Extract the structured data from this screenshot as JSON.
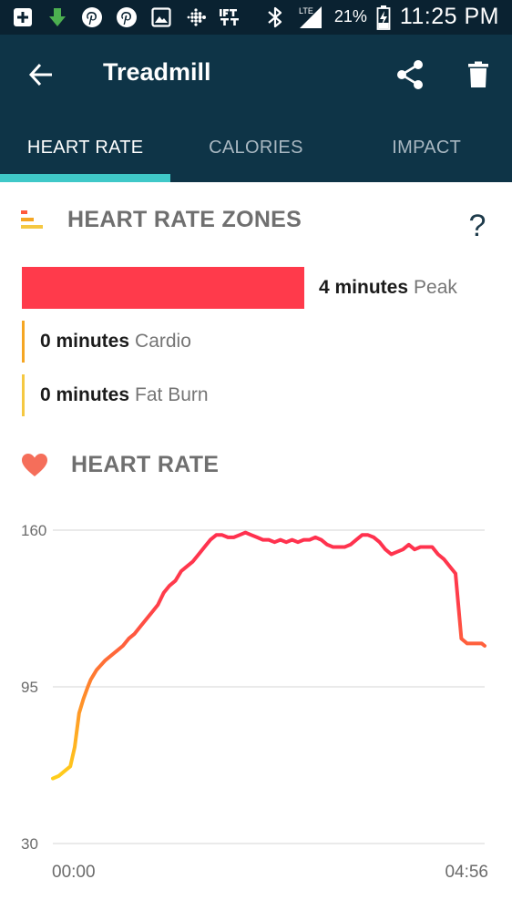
{
  "status_bar": {
    "battery": "21%",
    "time": "11:25 PM",
    "network": "LTE",
    "icons": [
      "add-box-icon",
      "download-icon",
      "pinterest-icon",
      "pinterest-icon",
      "image-icon",
      "fitbit-icon",
      "ifttt-icon",
      "bluetooth-icon",
      "signal-icon",
      "battery-charging-icon"
    ]
  },
  "app_bar": {
    "title": "Treadmill"
  },
  "tabs": [
    {
      "label": "HEART RATE",
      "active": true
    },
    {
      "label": "CALORIES",
      "active": false
    },
    {
      "label": "IMPACT",
      "active": false
    }
  ],
  "zones": {
    "title": "HEART RATE ZONES",
    "help": "?",
    "items": [
      {
        "minutes": "4 minutes",
        "label": "Peak",
        "color": "#ff3a4b"
      },
      {
        "minutes": "0 minutes",
        "label": "Cardio",
        "color": "#f5a623"
      },
      {
        "minutes": "0 minutes",
        "label": "Fat Burn",
        "color": "#f5c842"
      }
    ]
  },
  "heart_rate": {
    "title": "HEART RATE"
  },
  "colors": {
    "status_bar_bg": "#0a2231",
    "app_bar_bg": "#0e3447",
    "tab_indicator": "#3fc8c8",
    "peak": "#ff3a4b",
    "line_start": "#ffd21a",
    "line_end": "#ff2f4f"
  },
  "chart_data": {
    "type": "line",
    "y_ticks": [
      "160",
      "95",
      "30"
    ],
    "x_ticks": [
      "00:00",
      "04:56"
    ],
    "ylim": [
      30,
      160
    ],
    "grid": true,
    "series": [
      {
        "x": [
          0,
          4,
          8,
          12,
          15,
          18,
          21,
          24,
          26,
          28,
          30,
          33,
          36,
          40,
          44,
          48,
          52,
          56,
          60,
          64,
          68,
          72,
          76,
          80,
          84,
          88,
          92,
          96,
          100,
          104,
          108,
          112,
          116,
          120,
          124,
          128,
          132,
          136,
          140,
          144,
          148,
          152,
          156,
          160,
          164,
          168,
          172,
          176,
          180,
          184,
          188,
          192,
          196,
          200,
          204,
          208,
          212,
          216,
          220,
          224,
          228,
          232,
          236,
          240,
          244,
          248,
          252,
          256,
          260,
          264,
          268,
          272,
          276,
          280,
          284,
          288,
          292,
          294,
          296
        ],
        "y": [
          57,
          58,
          60,
          62,
          70,
          84,
          90,
          95,
          98,
          100,
          102,
          104,
          106,
          108,
          110,
          112,
          115,
          117,
          120,
          123,
          126,
          129,
          134,
          137,
          139,
          143,
          145,
          147,
          150,
          153,
          156,
          158,
          158,
          157,
          157,
          158,
          159,
          158,
          157,
          156,
          156,
          155,
          156,
          155,
          156,
          155,
          156,
          156,
          157,
          156,
          154,
          153,
          153,
          153,
          154,
          156,
          158,
          158,
          157,
          155,
          152,
          150,
          151,
          152,
          154,
          152,
          153,
          153,
          153,
          150,
          148,
          145,
          142,
          115,
          113,
          113,
          113,
          113,
          112
        ]
      }
    ]
  }
}
